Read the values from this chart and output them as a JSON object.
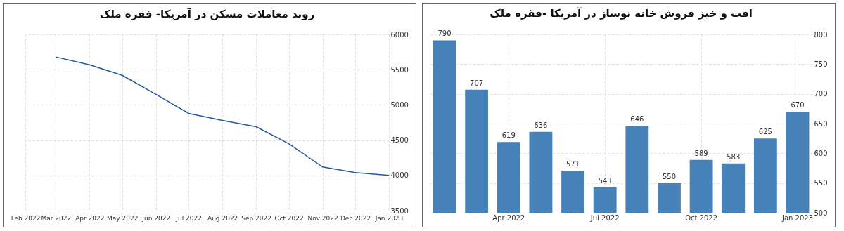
{
  "chart_data": [
    {
      "type": "line",
      "title": "روند معاملات مسکن در آمریکا- فقره ملک",
      "x": [
        "2022-03",
        "2022-04",
        "2022-05",
        "2022-06",
        "2022-07",
        "2022-08",
        "2022-09",
        "2022-10",
        "2022-11",
        "2022-12",
        "2023-01"
      ],
      "series": [
        {
          "color": "#1f5a9e",
          "values": [
            5680,
            5570,
            5420,
            5150,
            4880,
            4780,
            4690,
            4450,
            4120,
            4040,
            4000
          ]
        }
      ],
      "xlim": [
        "2022-02",
        "2023-01"
      ],
      "xticks": [
        {
          "value": "2022-02",
          "label": "Feb 2022"
        },
        {
          "value": "2022-03",
          "label": "Mar 2022"
        },
        {
          "value": "2022-04",
          "label": "Apr 2022"
        },
        {
          "value": "2022-05",
          "label": "May 2022"
        },
        {
          "value": "2022-06",
          "label": "Jun 2022"
        },
        {
          "value": "2022-07",
          "label": "Jul 2022"
        },
        {
          "value": "2022-08",
          "label": "Aug 2022"
        },
        {
          "value": "2022-09",
          "label": "Sep 2022"
        },
        {
          "value": "2022-10",
          "label": "Oct 2022"
        },
        {
          "value": "2022-11",
          "label": "Nov 2022"
        },
        {
          "value": "2022-12",
          "label": "Dec 2022"
        },
        {
          "value": "2023-01",
          "label": "Jan 2023"
        }
      ],
      "ylim": [
        3500,
        6000
      ],
      "yticks": [
        3500,
        4000,
        4500,
        5000,
        5500,
        6000
      ],
      "grid": true,
      "marker": "none",
      "line_style": "solid"
    },
    {
      "type": "bar",
      "title": "افت و خیز فروش خانه نوساز در آمریکا -فقره ملک",
      "categories": [
        null,
        null,
        "Apr 2022",
        null,
        null,
        "Jul 2022",
        null,
        null,
        "Oct 2022",
        null,
        null,
        "Jan 2023"
      ],
      "values": [
        790,
        707,
        619,
        636,
        571,
        543,
        646,
        550,
        589,
        583,
        625,
        670
      ],
      "color": "#4682b8",
      "ylim": [
        500,
        800
      ],
      "yticks": [
        500,
        550,
        600,
        650,
        700,
        750,
        800
      ],
      "grid": true,
      "data_labels": true
    }
  ]
}
